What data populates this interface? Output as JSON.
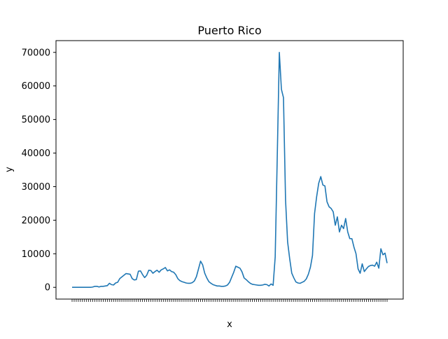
{
  "chart_data": {
    "type": "line",
    "title": "Puerto Rico",
    "xlabel": "x",
    "ylabel": "y",
    "ylim": [
      -3500,
      73500
    ],
    "yticks": [
      0,
      10000,
      20000,
      30000,
      40000,
      50000,
      60000,
      70000
    ],
    "grid": false,
    "legend": "none",
    "series": [
      {
        "color": "#1f77b4",
        "values": [
          0,
          0,
          0,
          0,
          0,
          0,
          0,
          0,
          0,
          0,
          100,
          300,
          300,
          100,
          300,
          300,
          400,
          500,
          1200,
          800,
          700,
          1300,
          1500,
          2600,
          3100,
          3600,
          4100,
          4000,
          3900,
          2600,
          2200,
          2300,
          4800,
          4900,
          3800,
          2900,
          3600,
          5100,
          5000,
          4200,
          4700,
          5100,
          4500,
          5200,
          5500,
          5900,
          4900,
          5200,
          4700,
          4500,
          3800,
          2600,
          2000,
          1700,
          1500,
          1300,
          1200,
          1200,
          1400,
          1900,
          3200,
          5500,
          7800,
          6700,
          4200,
          2800,
          1700,
          1200,
          800,
          600,
          400,
          400,
          300,
          300,
          400,
          700,
          1500,
          3000,
          4500,
          6300,
          6000,
          5700,
          4600,
          2800,
          2300,
          1700,
          1200,
          900,
          800,
          700,
          600,
          600,
          700,
          900,
          800,
          400,
          1000,
          600,
          9000,
          39000,
          70000,
          59000,
          56500,
          26000,
          13500,
          8500,
          4200,
          2800,
          1600,
          1300,
          1200,
          1500,
          1800,
          2500,
          3900,
          6000,
          9500,
          22000,
          27000,
          31000,
          33000,
          30500,
          30200,
          25500,
          24000,
          23500,
          22500,
          18500,
          21000,
          16500,
          18500,
          17500,
          20500,
          16500,
          14500,
          14500,
          12000,
          10000,
          5500,
          4200,
          7000,
          4700,
          5500,
          6200,
          6500,
          6600,
          6300,
          7500,
          5700,
          11500,
          9700,
          10200,
          7200
        ]
      }
    ]
  }
}
